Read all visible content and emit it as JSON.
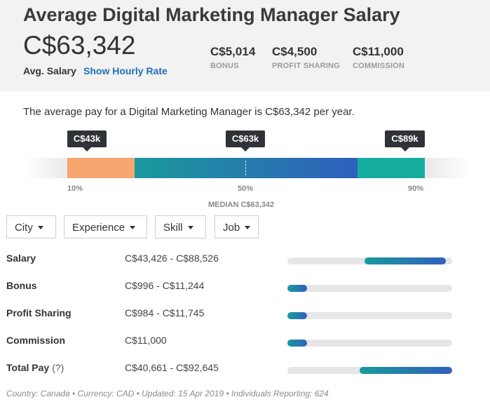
{
  "header": {
    "title": "Average Digital Marketing Manager Salary",
    "salary": "C$63,342",
    "avg_label": "Avg. Salary",
    "hourly_link": "Show Hourly Rate",
    "stats": [
      {
        "value": "C$5,014",
        "label": "BONUS"
      },
      {
        "value": "C$4,500",
        "label": "PROFIT SHARING"
      },
      {
        "value": "C$11,000",
        "label": "COMMISSION"
      }
    ]
  },
  "summary": "The average pay for a Digital Marketing Manager is C$63,342 per year.",
  "range": {
    "tooltips": {
      "low": "C$43k",
      "median": "C$63k",
      "high": "C$89k"
    },
    "percentiles": {
      "p10": "10%",
      "p50": "50%",
      "p90": "90%"
    },
    "median_label": "MEDIAN C$63,342",
    "colors": {
      "low": "#f6a66e",
      "mid_start": "#1a9a9c",
      "mid_end": "#2f5fbd",
      "high": "#14ada0"
    }
  },
  "filters": [
    "City",
    "Experience",
    "Skill",
    "Job"
  ],
  "rows": [
    {
      "label": "Salary",
      "value": "C$43,426 - C$88,526",
      "range_from": 0.47,
      "range_to": 0.96
    },
    {
      "label": "Bonus",
      "value": "C$996 - C$11,244",
      "range_from": 0.0,
      "range_to": 0.12
    },
    {
      "label": "Profit Sharing",
      "value": "C$984 - C$11,745",
      "range_from": 0.0,
      "range_to": 0.12
    },
    {
      "label": "Commission",
      "value": "C$11,000",
      "range_from": 0.0,
      "range_to": 0.12
    },
    {
      "label": "Total Pay",
      "help": "(?)",
      "value": "C$40,661 - C$92,645",
      "range_from": 0.44,
      "range_to": 1.0
    }
  ],
  "footer": "Country: Canada • Currency: CAD • Updated: 15 Apr 2019 • Individuals Reporting: 624"
}
